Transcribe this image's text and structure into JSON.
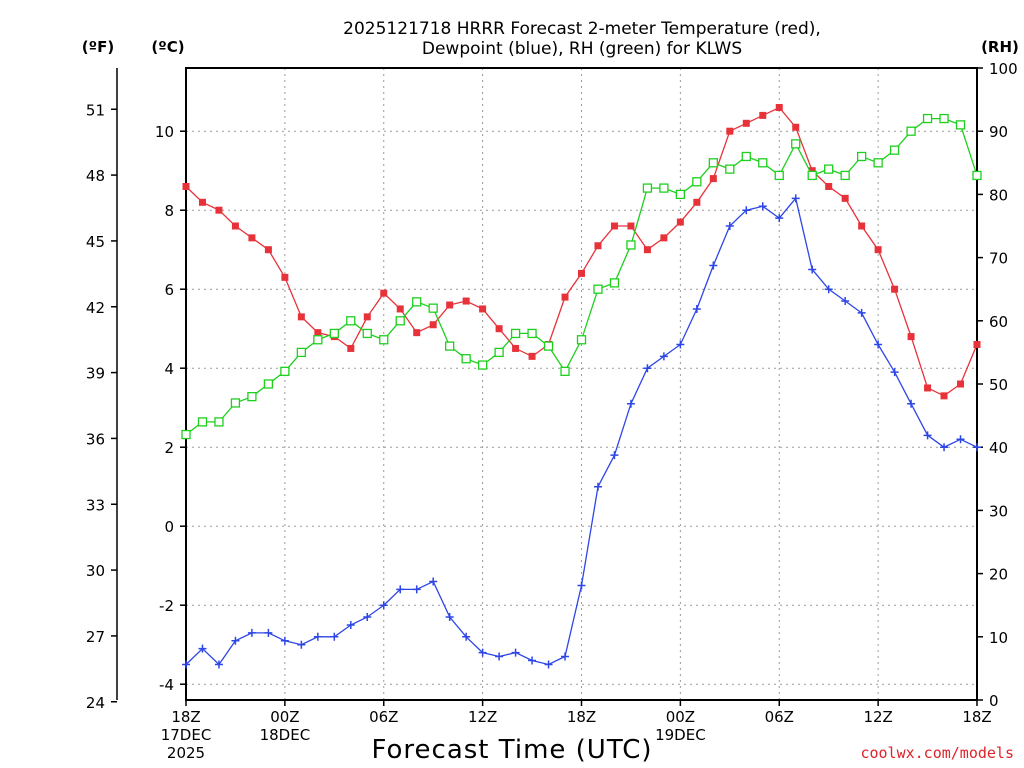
{
  "chart_data": {
    "type": "line",
    "title_lines": [
      "2025121718 HRRR Forecast 2-meter Temperature (red),",
      "Dewpoint (blue), RH (green) for KLWS"
    ],
    "xlabel": "Forecast Time (UTC)",
    "x_range_hours": [
      0,
      48
    ],
    "x_ticks": [
      {
        "h": 0,
        "lines": [
          "18Z",
          "17DEC",
          "2025"
        ]
      },
      {
        "h": 6,
        "lines": [
          "00Z",
          "18DEC"
        ]
      },
      {
        "h": 12,
        "lines": [
          "06Z"
        ]
      },
      {
        "h": 18,
        "lines": [
          "12Z"
        ]
      },
      {
        "h": 24,
        "lines": [
          "18Z"
        ]
      },
      {
        "h": 30,
        "lines": [
          "00Z",
          "19DEC"
        ]
      },
      {
        "h": 36,
        "lines": [
          "06Z"
        ]
      },
      {
        "h": 42,
        "lines": [
          "12Z"
        ]
      },
      {
        "h": 48,
        "lines": [
          "18Z"
        ]
      }
    ],
    "axes": {
      "celsius": {
        "header": "(ºC)",
        "range": [
          -4.4,
          11.6
        ],
        "ticks": [
          -4,
          -2,
          0,
          2,
          4,
          6,
          8,
          10
        ]
      },
      "fahrenheit": {
        "header": "(ºF)",
        "ticks": [
          24,
          27,
          30,
          33,
          36,
          39,
          42,
          45,
          48,
          51
        ]
      },
      "rh": {
        "header": "(RH)",
        "range": [
          0,
          100
        ],
        "ticks": [
          0,
          10,
          20,
          30,
          40,
          50,
          60,
          70,
          80,
          90,
          100
        ]
      }
    },
    "grid": true,
    "series": [
      {
        "name": "2-meter Temperature",
        "unit": "C",
        "axis": "celsius",
        "color": "#e8323a",
        "marker": "filled-square",
        "values": [
          8.6,
          8.2,
          8.0,
          7.6,
          7.3,
          7.0,
          6.3,
          5.3,
          4.9,
          4.8,
          4.5,
          5.3,
          5.9,
          5.5,
          4.9,
          5.1,
          5.6,
          5.7,
          5.5,
          5.0,
          4.5,
          4.3,
          4.6,
          5.8,
          6.4,
          7.1,
          7.6,
          7.6,
          7.0,
          7.3,
          7.7,
          8.2,
          8.8,
          10.0,
          10.2,
          10.4,
          10.6,
          10.1,
          9.0,
          8.6,
          8.3,
          7.6,
          7.0,
          6.0,
          4.8,
          3.5,
          3.3,
          3.6,
          4.6
        ]
      },
      {
        "name": "Dewpoint",
        "unit": "C",
        "axis": "celsius",
        "color": "#2d46e6",
        "marker": "plus",
        "values": [
          -3.5,
          -3.1,
          -3.5,
          -2.9,
          -2.7,
          -2.7,
          -2.9,
          -3.0,
          -2.8,
          -2.8,
          -2.5,
          -2.3,
          -2.0,
          -1.6,
          -1.6,
          -1.4,
          -2.3,
          -2.8,
          -3.2,
          -3.3,
          -3.2,
          -3.4,
          -3.5,
          -3.3,
          -1.5,
          1.0,
          1.8,
          3.1,
          4.0,
          4.3,
          4.6,
          5.5,
          6.6,
          7.6,
          8.0,
          8.1,
          7.8,
          8.3,
          6.5,
          6.0,
          5.7,
          5.4,
          4.6,
          3.9,
          3.1,
          2.3,
          2.0,
          2.2,
          2.0
        ]
      },
      {
        "name": "RH",
        "unit": "%",
        "axis": "rh",
        "color": "#1ecf1e",
        "marker": "open-square",
        "values": [
          42,
          44,
          44,
          47,
          48,
          50,
          52,
          55,
          57,
          58,
          60,
          58,
          57,
          60,
          63,
          62,
          56,
          54,
          53,
          55,
          58,
          58,
          56,
          52,
          57,
          65,
          66,
          72,
          81,
          81,
          80,
          82,
          85,
          84,
          86,
          85,
          83,
          88,
          83,
          84,
          83,
          86,
          85,
          87,
          90,
          92,
          92,
          91,
          83
        ]
      }
    ]
  },
  "credit": "coolwx.com/models"
}
